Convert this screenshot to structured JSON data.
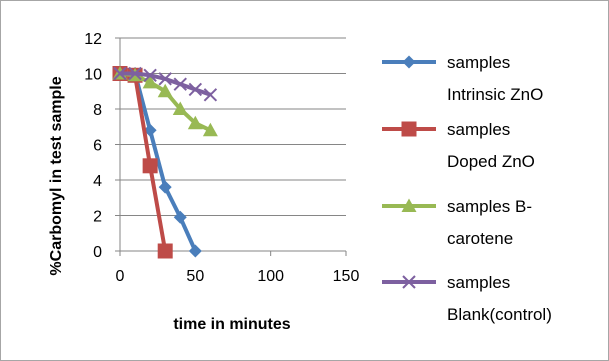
{
  "chart_data": {
    "type": "line",
    "title": "",
    "xlabel": "time in minutes",
    "ylabel": "%Carbomyl in test sample",
    "xlim": [
      0,
      150
    ],
    "ylim": [
      0,
      12
    ],
    "xticks": [
      0,
      50,
      100,
      150
    ],
    "yticks": [
      0,
      2,
      4,
      6,
      8,
      10,
      12
    ],
    "grid": "horizontal",
    "legend": "right",
    "series": [
      {
        "name": "samples Intrinsic ZnO",
        "legend_lines": [
          "samples",
          "Intrinsic ZnO"
        ],
        "color": "#4a7ebb",
        "marker": "diamond",
        "x": [
          0,
          10,
          20,
          30,
          40,
          50
        ],
        "y": [
          10,
          10,
          6.8,
          3.6,
          1.9,
          0
        ]
      },
      {
        "name": "samples Doped ZnO",
        "legend_lines": [
          "samples",
          "Doped ZnO"
        ],
        "color": "#be4b48",
        "marker": "square",
        "x": [
          0,
          10,
          20,
          30
        ],
        "y": [
          10,
          9.9,
          4.8,
          0
        ]
      },
      {
        "name": "samples B-carotene",
        "legend_lines": [
          "samples B-",
          "carotene"
        ],
        "color": "#98b954",
        "marker": "triangle",
        "x": [
          0,
          10,
          20,
          30,
          40,
          50,
          60
        ],
        "y": [
          10,
          9.9,
          9.5,
          9,
          8,
          7.2,
          6.8
        ]
      },
      {
        "name": "samples Blank(control)",
        "legend_lines": [
          "samples",
          "Blank(control)"
        ],
        "color": "#7d60a0",
        "marker": "x",
        "x": [
          0,
          10,
          20,
          30,
          40,
          50,
          60
        ],
        "y": [
          10,
          10,
          9.9,
          9.7,
          9.4,
          9.1,
          8.8
        ]
      }
    ]
  }
}
